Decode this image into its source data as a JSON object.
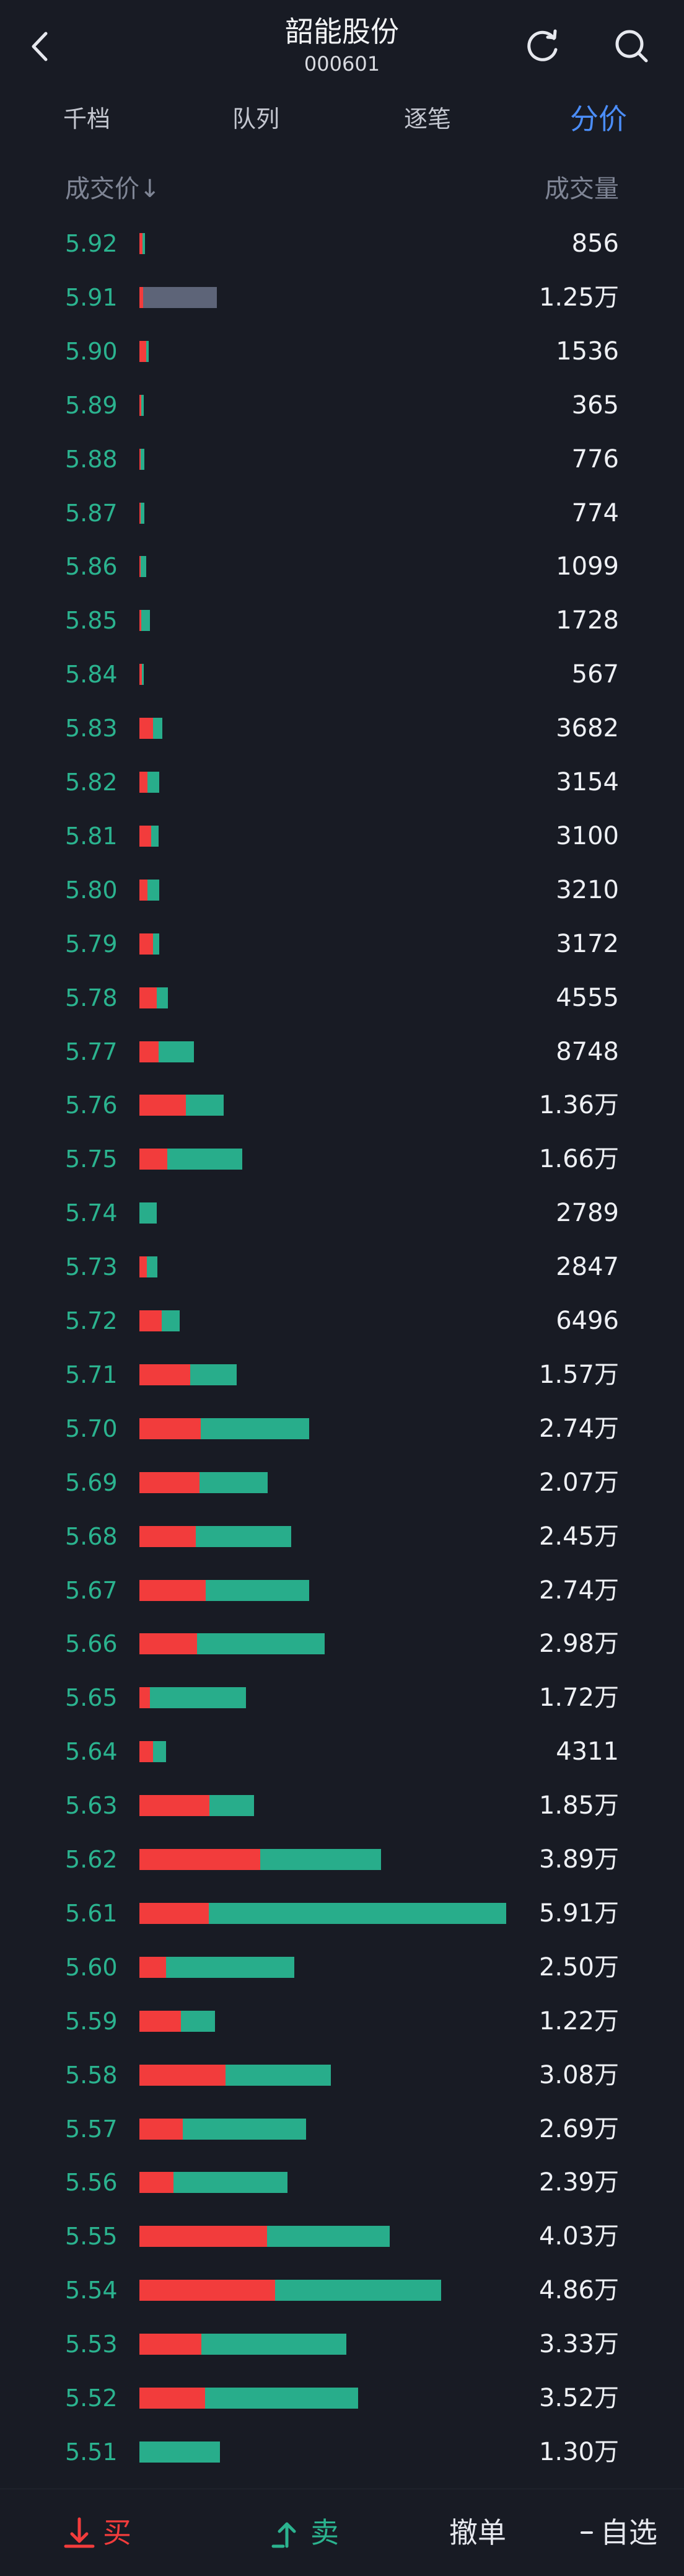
{
  "header": {
    "title": "韶能股份",
    "code": "000601"
  },
  "tabs": [
    {
      "label": "千档",
      "active": false
    },
    {
      "label": "队列",
      "active": false
    },
    {
      "label": "逐笔",
      "active": false
    },
    {
      "label": "分价",
      "active": true
    }
  ],
  "columns": {
    "price": "成交价↓",
    "volume": "成交量"
  },
  "colors": {
    "buy": "#f23c3c",
    "sell": "#28ad8b",
    "neutral": "#5d6478",
    "price_text": "#2bb38f",
    "accent": "#4b8df8"
  },
  "rows": [
    {
      "price": "5.92",
      "volume": "856",
      "buy_ratio": 0.6,
      "neutral": false,
      "total": 856
    },
    {
      "price": "5.91",
      "volume": "1.25万",
      "buy_ratio": 0.05,
      "neutral": true,
      "total": 12500
    },
    {
      "price": "5.90",
      "volume": "1536",
      "buy_ratio": 0.7,
      "neutral": false,
      "total": 1536
    },
    {
      "price": "5.89",
      "volume": "365",
      "buy_ratio": 0.4,
      "neutral": false,
      "total": 365
    },
    {
      "price": "5.88",
      "volume": "776",
      "buy_ratio": 0.2,
      "neutral": false,
      "total": 776
    },
    {
      "price": "5.87",
      "volume": "774",
      "buy_ratio": 0.3,
      "neutral": false,
      "total": 774
    },
    {
      "price": "5.86",
      "volume": "1099",
      "buy_ratio": 0.15,
      "neutral": false,
      "total": 1099
    },
    {
      "price": "5.85",
      "volume": "1728",
      "buy_ratio": 0.15,
      "neutral": false,
      "total": 1728
    },
    {
      "price": "5.84",
      "volume": "567",
      "buy_ratio": 0.5,
      "neutral": false,
      "total": 567
    },
    {
      "price": "5.83",
      "volume": "3682",
      "buy_ratio": 0.6,
      "neutral": false,
      "total": 3682
    },
    {
      "price": "5.82",
      "volume": "3154",
      "buy_ratio": 0.4,
      "neutral": false,
      "total": 3154
    },
    {
      "price": "5.81",
      "volume": "3100",
      "buy_ratio": 0.6,
      "neutral": false,
      "total": 3100
    },
    {
      "price": "5.80",
      "volume": "3210",
      "buy_ratio": 0.4,
      "neutral": false,
      "total": 3210
    },
    {
      "price": "5.79",
      "volume": "3172",
      "buy_ratio": 0.7,
      "neutral": false,
      "total": 3172
    },
    {
      "price": "5.78",
      "volume": "4555",
      "buy_ratio": 0.6,
      "neutral": false,
      "total": 4555
    },
    {
      "price": "5.77",
      "volume": "8748",
      "buy_ratio": 0.35,
      "neutral": false,
      "total": 8748
    },
    {
      "price": "5.76",
      "volume": "1.36万",
      "buy_ratio": 0.55,
      "neutral": false,
      "total": 13600
    },
    {
      "price": "5.75",
      "volume": "1.66万",
      "buy_ratio": 0.27,
      "neutral": false,
      "total": 16600
    },
    {
      "price": "5.74",
      "volume": "2789",
      "buy_ratio": 0.0,
      "neutral": false,
      "total": 2789
    },
    {
      "price": "5.73",
      "volume": "2847",
      "buy_ratio": 0.4,
      "neutral": false,
      "total": 2847
    },
    {
      "price": "5.72",
      "volume": "6496",
      "buy_ratio": 0.55,
      "neutral": false,
      "total": 6496
    },
    {
      "price": "5.71",
      "volume": "1.57万",
      "buy_ratio": 0.52,
      "neutral": false,
      "total": 15700
    },
    {
      "price": "5.70",
      "volume": "2.74万",
      "buy_ratio": 0.36,
      "neutral": false,
      "total": 27400
    },
    {
      "price": "5.69",
      "volume": "2.07万",
      "buy_ratio": 0.47,
      "neutral": false,
      "total": 20700
    },
    {
      "price": "5.68",
      "volume": "2.45万",
      "buy_ratio": 0.37,
      "neutral": false,
      "total": 24500
    },
    {
      "price": "5.67",
      "volume": "2.74万",
      "buy_ratio": 0.39,
      "neutral": false,
      "total": 27400
    },
    {
      "price": "5.66",
      "volume": "2.98万",
      "buy_ratio": 0.31,
      "neutral": false,
      "total": 29800
    },
    {
      "price": "5.65",
      "volume": "1.72万",
      "buy_ratio": 0.1,
      "neutral": false,
      "total": 17200
    },
    {
      "price": "5.64",
      "volume": "4311",
      "buy_ratio": 0.5,
      "neutral": false,
      "total": 4311
    },
    {
      "price": "5.63",
      "volume": "1.85万",
      "buy_ratio": 0.61,
      "neutral": false,
      "total": 18500
    },
    {
      "price": "5.62",
      "volume": "3.89万",
      "buy_ratio": 0.5,
      "neutral": false,
      "total": 38900
    },
    {
      "price": "5.61",
      "volume": "5.91万",
      "buy_ratio": 0.19,
      "neutral": false,
      "total": 59100
    },
    {
      "price": "5.60",
      "volume": "2.50万",
      "buy_ratio": 0.17,
      "neutral": false,
      "total": 25000
    },
    {
      "price": "5.59",
      "volume": "1.22万",
      "buy_ratio": 0.55,
      "neutral": false,
      "total": 12200
    },
    {
      "price": "5.58",
      "volume": "3.08万",
      "buy_ratio": 0.45,
      "neutral": false,
      "total": 30800
    },
    {
      "price": "5.57",
      "volume": "2.69万",
      "buy_ratio": 0.26,
      "neutral": false,
      "total": 26900
    },
    {
      "price": "5.56",
      "volume": "2.39万",
      "buy_ratio": 0.23,
      "neutral": false,
      "total": 23900
    },
    {
      "price": "5.55",
      "volume": "4.03万",
      "buy_ratio": 0.51,
      "neutral": false,
      "total": 40300
    },
    {
      "price": "5.54",
      "volume": "4.86万",
      "buy_ratio": 0.45,
      "neutral": false,
      "total": 48600
    },
    {
      "price": "5.53",
      "volume": "3.33万",
      "buy_ratio": 0.3,
      "neutral": false,
      "total": 33300
    },
    {
      "price": "5.52",
      "volume": "3.52万",
      "buy_ratio": 0.3,
      "neutral": false,
      "total": 35200
    },
    {
      "price": "5.51",
      "volume": "1.30万",
      "buy_ratio": 0.0,
      "neutral": false,
      "total": 13000
    }
  ],
  "bottom": {
    "buy": "买",
    "sell": "卖",
    "cancel": "撤单",
    "watchlist": "自选"
  }
}
